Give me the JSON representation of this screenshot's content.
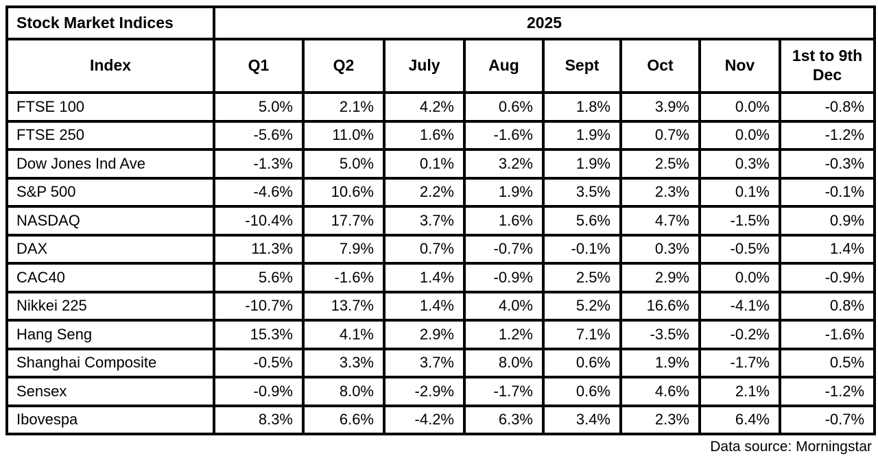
{
  "chart_data": {
    "type": "table",
    "title": "Stock Market Indices",
    "year_header": "2025",
    "columns": [
      "Index",
      "Q1",
      "Q2",
      "July",
      "Aug",
      "Sept",
      "Oct",
      "Nov",
      "1st to 9th Dec"
    ],
    "rows": [
      {
        "index": "FTSE 100",
        "values": [
          "5.0%",
          "2.1%",
          "4.2%",
          "0.6%",
          "1.8%",
          "3.9%",
          "0.0%",
          "-0.8%"
        ]
      },
      {
        "index": "FTSE 250",
        "values": [
          "-5.6%",
          "11.0%",
          "1.6%",
          "-1.6%",
          "1.9%",
          "0.7%",
          "0.0%",
          "-1.2%"
        ]
      },
      {
        "index": "Dow Jones Ind Ave",
        "values": [
          "-1.3%",
          "5.0%",
          "0.1%",
          "3.2%",
          "1.9%",
          "2.5%",
          "0.3%",
          "-0.3%"
        ]
      },
      {
        "index": "S&P 500",
        "values": [
          "-4.6%",
          "10.6%",
          "2.2%",
          "1.9%",
          "3.5%",
          "2.3%",
          "0.1%",
          "-0.1%"
        ]
      },
      {
        "index": "NASDAQ",
        "values": [
          "-10.4%",
          "17.7%",
          "3.7%",
          "1.6%",
          "5.6%",
          "4.7%",
          "-1.5%",
          "0.9%"
        ]
      },
      {
        "index": "DAX",
        "values": [
          "11.3%",
          "7.9%",
          "0.7%",
          "-0.7%",
          "-0.1%",
          "0.3%",
          "-0.5%",
          "1.4%"
        ]
      },
      {
        "index": "CAC40",
        "values": [
          "5.6%",
          "-1.6%",
          "1.4%",
          "-0.9%",
          "2.5%",
          "2.9%",
          "0.0%",
          "-0.9%"
        ]
      },
      {
        "index": "Nikkei 225",
        "values": [
          "-10.7%",
          "13.7%",
          "1.4%",
          "4.0%",
          "5.2%",
          "16.6%",
          "-4.1%",
          "0.8%"
        ]
      },
      {
        "index": "Hang Seng",
        "values": [
          "15.3%",
          "4.1%",
          "2.9%",
          "1.2%",
          "7.1%",
          "-3.5%",
          "-0.2%",
          "-1.6%"
        ]
      },
      {
        "index": "Shanghai Composite",
        "values": [
          "-0.5%",
          "3.3%",
          "3.7%",
          "8.0%",
          "0.6%",
          "1.9%",
          "-1.7%",
          "0.5%"
        ]
      },
      {
        "index": "Sensex",
        "values": [
          "-0.9%",
          "8.0%",
          "-2.9%",
          "-1.7%",
          "0.6%",
          "4.6%",
          "2.1%",
          "-1.2%"
        ]
      },
      {
        "index": "Ibovespa",
        "values": [
          "8.3%",
          "6.6%",
          "-4.2%",
          "6.3%",
          "3.4%",
          "2.3%",
          "6.4%",
          "-0.7%"
        ]
      }
    ],
    "source_note": "Data source: Morningstar",
    "colors": {
      "border": "#000000",
      "background": "#ffffff",
      "text": "#000000"
    }
  }
}
